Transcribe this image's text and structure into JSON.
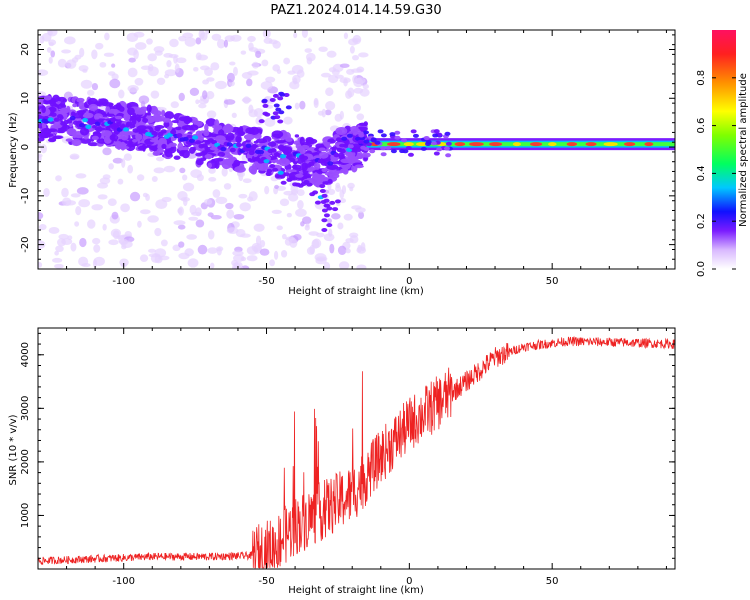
{
  "figure_title": "PAZ1.2024.014.14.59.G30",
  "chart_data": [
    {
      "type": "heatmap",
      "xlabel": "Height of straight line (km)",
      "ylabel": "Frequency (Hz)",
      "xlim": [
        -130,
        93
      ],
      "ylim": [
        -25,
        24
      ],
      "xticks": [
        -100,
        -50,
        0,
        50
      ],
      "yticks": [
        -20,
        -10,
        0,
        10,
        20
      ],
      "colorbar": {
        "label": "Normalized spectral amplitude",
        "range": [
          0.0,
          1.0
        ],
        "ticks": [
          "0.0",
          "0.2",
          "0.4",
          "0.6",
          "0.8"
        ],
        "tick_values": [
          0.0,
          0.2,
          0.4,
          0.6,
          0.8
        ]
      },
      "ridge": [
        {
          "x": -130,
          "y": 6
        },
        {
          "x": -110,
          "y": 5
        },
        {
          "x": -95,
          "y": 4
        },
        {
          "x": -80,
          "y": 2
        },
        {
          "x": -65,
          "y": 0
        },
        {
          "x": -50,
          "y": -1
        },
        {
          "x": -40,
          "y": -2
        },
        {
          "x": -30,
          "y": -4
        },
        {
          "x": -25,
          "y": -1
        },
        {
          "x": -15,
          "y": 0.5
        },
        {
          "x": 0,
          "y": 1
        },
        {
          "x": 15,
          "y": 0.7
        },
        {
          "x": 40,
          "y": 0.6
        },
        {
          "x": 93,
          "y": 0.6
        }
      ]
    },
    {
      "type": "line",
      "xlabel": "Height of straight line (km)",
      "ylabel": "SNR (10 * v/v)",
      "xlim": [
        -130,
        93
      ],
      "ylim": [
        0,
        4500
      ],
      "xticks": [
        -100,
        -50,
        0,
        50
      ],
      "yticks": [
        1000,
        2000,
        3000,
        4000
      ],
      "color": "#ee2222",
      "trend": [
        {
          "x": -130,
          "y": 150
        },
        {
          "x": -110,
          "y": 190
        },
        {
          "x": -90,
          "y": 230
        },
        {
          "x": -70,
          "y": 230
        },
        {
          "x": -55,
          "y": 250
        },
        {
          "x": -48,
          "y": 400
        },
        {
          "x": -40,
          "y": 800
        },
        {
          "x": -30,
          "y": 1100
        },
        {
          "x": -20,
          "y": 1400
        },
        {
          "x": -10,
          "y": 2100
        },
        {
          "x": 0,
          "y": 2700
        },
        {
          "x": 10,
          "y": 3100
        },
        {
          "x": 20,
          "y": 3500
        },
        {
          "x": 30,
          "y": 3950
        },
        {
          "x": 40,
          "y": 4150
        },
        {
          "x": 55,
          "y": 4250
        },
        {
          "x": 75,
          "y": 4230
        },
        {
          "x": 93,
          "y": 4200
        }
      ]
    }
  ]
}
